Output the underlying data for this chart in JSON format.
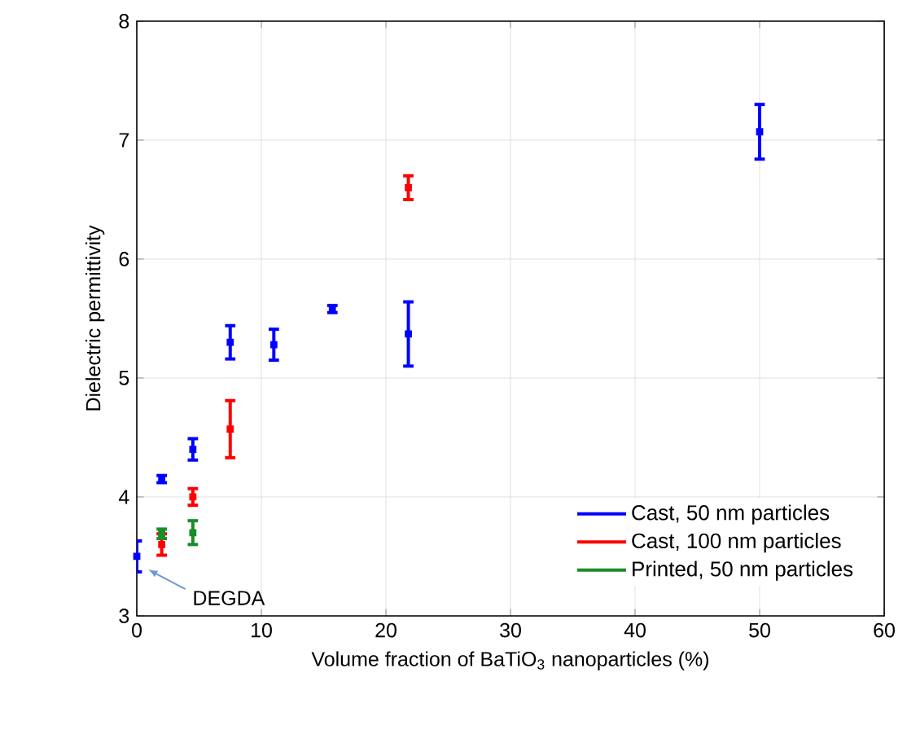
{
  "chart_data": {
    "type": "scatter",
    "xlabel": "Volume fraction of BaTiO$_{3}$ nanoparticles (%)",
    "ylabel": "Dielectric permittivity",
    "series": [
      {
        "name": "Cast, 50 nm particles",
        "color": "#0000ff",
        "x": [
          0,
          2,
          4.5,
          7.5,
          11,
          15.7,
          21.8,
          50
        ],
        "values": [
          3.5,
          4.15,
          4.4,
          5.3,
          5.28,
          5.58,
          5.37,
          7.07
        ],
        "errors": [
          0.13,
          0.03,
          0.09,
          0.14,
          0.13,
          0.03,
          0.27,
          0.23
        ]
      },
      {
        "name": "Cast, 100 nm particles",
        "color": "#ff0000",
        "x": [
          2,
          4.5,
          7.5,
          21.8
        ],
        "values": [
          3.6,
          4.0,
          4.57,
          6.6
        ],
        "errors": [
          0.09,
          0.07,
          0.24,
          0.1
        ]
      },
      {
        "name": "Printed, 50 nm particles",
        "color": "#1a8c2a",
        "x": [
          2,
          4.5
        ],
        "values": [
          3.69,
          3.7
        ],
        "errors": [
          0.04,
          0.1
        ]
      }
    ],
    "xlim": [
      0,
      60
    ],
    "ylim": [
      3,
      8
    ],
    "xticks": [
      0,
      10,
      20,
      30,
      40,
      50,
      60
    ],
    "yticks": [
      3,
      4,
      5,
      6,
      7,
      8
    ],
    "grid": true,
    "legend": "bottom right",
    "marker": "square",
    "annotations": [
      "DEGDA"
    ]
  }
}
